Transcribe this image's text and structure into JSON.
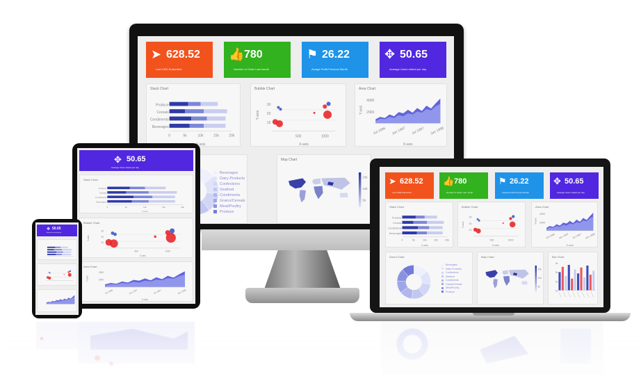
{
  "stats": [
    {
      "value": "628.52",
      "label": "Last 1000 Subscriber",
      "icon": "paper-plane-icon",
      "color": "#f2521c"
    },
    {
      "value": "780",
      "label": "Number of Order Last month",
      "icon": "thumbs-up-icon",
      "color": "#31b21e"
    },
    {
      "value": "26.22",
      "label": "Avarge Profit Previous Month",
      "icon": "flag-icon",
      "color": "#1e93e8"
    },
    {
      "value": "50.65",
      "label": "Avarage Users visited per day",
      "icon": "crosshair-icon",
      "color": "#5127e0"
    }
  ],
  "panels": {
    "stack": {
      "title": "Stack Chart",
      "xlabel": "X-axis"
    },
    "bubble": {
      "title": "Bubble Chart",
      "xlabel": "X-axis",
      "ylabel": "Y-axis"
    },
    "area": {
      "title": "Area Chart",
      "xlabel": "X-axis",
      "ylabel": "Y-axis"
    },
    "donut": {
      "title": "Donut Chart"
    },
    "map": {
      "title": "Map Chart"
    },
    "bar": {
      "title": "Bar Chart"
    }
  },
  "chart_data": [
    {
      "type": "bar",
      "orientation": "horizontal",
      "stacked": true,
      "title": "Stack Chart",
      "xlabel": "X-axis",
      "categories": [
        "Produce",
        "Cereals",
        "Condiments",
        "Beverages"
      ],
      "x_ticks": [
        "0",
        "5k",
        "10k",
        "15k",
        "20k"
      ],
      "series": [
        {
          "color": "#2f3aa8",
          "values": [
            6000,
            5000,
            7000,
            6500
          ]
        },
        {
          "color": "#7c86d8",
          "values": [
            4000,
            6000,
            5000,
            4500
          ]
        },
        {
          "color": "#c9cdf0",
          "values": [
            5500,
            7500,
            6000,
            7000
          ]
        }
      ]
    },
    {
      "type": "scatter",
      "title": "Bubble Chart",
      "xlabel": "X-axis",
      "ylabel": "Y-axis",
      "x_ticks": [
        "500",
        "1000"
      ],
      "y_ticks": [
        "10",
        "20",
        "30"
      ],
      "points": [
        {
          "x": 60,
          "y": 10,
          "r": 4,
          "color": "#e8282b"
        },
        {
          "x": 140,
          "y": 8,
          "r": 5,
          "color": "#e8282b"
        },
        {
          "x": 120,
          "y": 26,
          "r": 2,
          "color": "#3b58c9"
        },
        {
          "x": 160,
          "y": 24,
          "r": 2,
          "color": "#3b58c9"
        },
        {
          "x": 800,
          "y": 20,
          "r": 1.5,
          "color": "#e8282b"
        },
        {
          "x": 1000,
          "y": 27,
          "r": 3,
          "color": "#e8282b"
        },
        {
          "x": 1050,
          "y": 18,
          "r": 6,
          "color": "#e8282b"
        },
        {
          "x": 1070,
          "y": 30,
          "r": 3,
          "color": "#3b58c9"
        }
      ]
    },
    {
      "type": "area",
      "title": "Area Chart",
      "xlabel": "X-axis",
      "ylabel": "Y-axis",
      "x_ticks": [
        "Jul 1996",
        "Jan 1997",
        "Jul 1997",
        "Jan 1998"
      ],
      "y_ticks": [
        "2000",
        "4000"
      ],
      "series": [
        {
          "color": "#5b5bd9",
          "values": [
            700,
            1100,
            900,
            1500,
            1200,
            1900,
            1700,
            2300,
            1800,
            2600,
            2100,
            3000,
            2500,
            3400,
            4200
          ]
        },
        {
          "color": "#9ba3f0",
          "values": [
            400,
            800,
            700,
            1100,
            900,
            1400,
            1200,
            1700,
            1500,
            2000,
            1800,
            2400,
            2200,
            2900,
            3300
          ]
        }
      ]
    },
    {
      "type": "pie",
      "title": "Donut Chart",
      "categories": [
        "Beverages",
        "Dairy Products",
        "Confections",
        "Seafood",
        "Condiments",
        "Grains/Cereals",
        "Meat/Poultry",
        "Produce"
      ],
      "values": [
        14,
        13,
        13,
        12,
        12,
        12,
        12,
        12
      ],
      "colors": [
        "#eef0fb",
        "#e1e4f8",
        "#d2d6f4",
        "#c2c7f0",
        "#b1b7ec",
        "#9fa6e6",
        "#8a92e0",
        "#737cd8"
      ]
    },
    {
      "type": "heatmap",
      "title": "Map Chart",
      "scale_ticks": [
        "15k",
        "10k",
        "5k"
      ],
      "colors": [
        "#e6e8f5",
        "#2330a0"
      ]
    },
    {
      "type": "bar",
      "title": "Bar Chart",
      "x_ticks": [
        "4k",
        "3k",
        "2k",
        "1k"
      ],
      "values": [
        2800,
        3600,
        2200,
        3900,
        1800,
        3200,
        2600,
        3500,
        2000,
        3800,
        2400,
        3000
      ],
      "colors": [
        "#3e4ab9",
        "#e85a5a",
        "#c8ccef"
      ]
    }
  ]
}
